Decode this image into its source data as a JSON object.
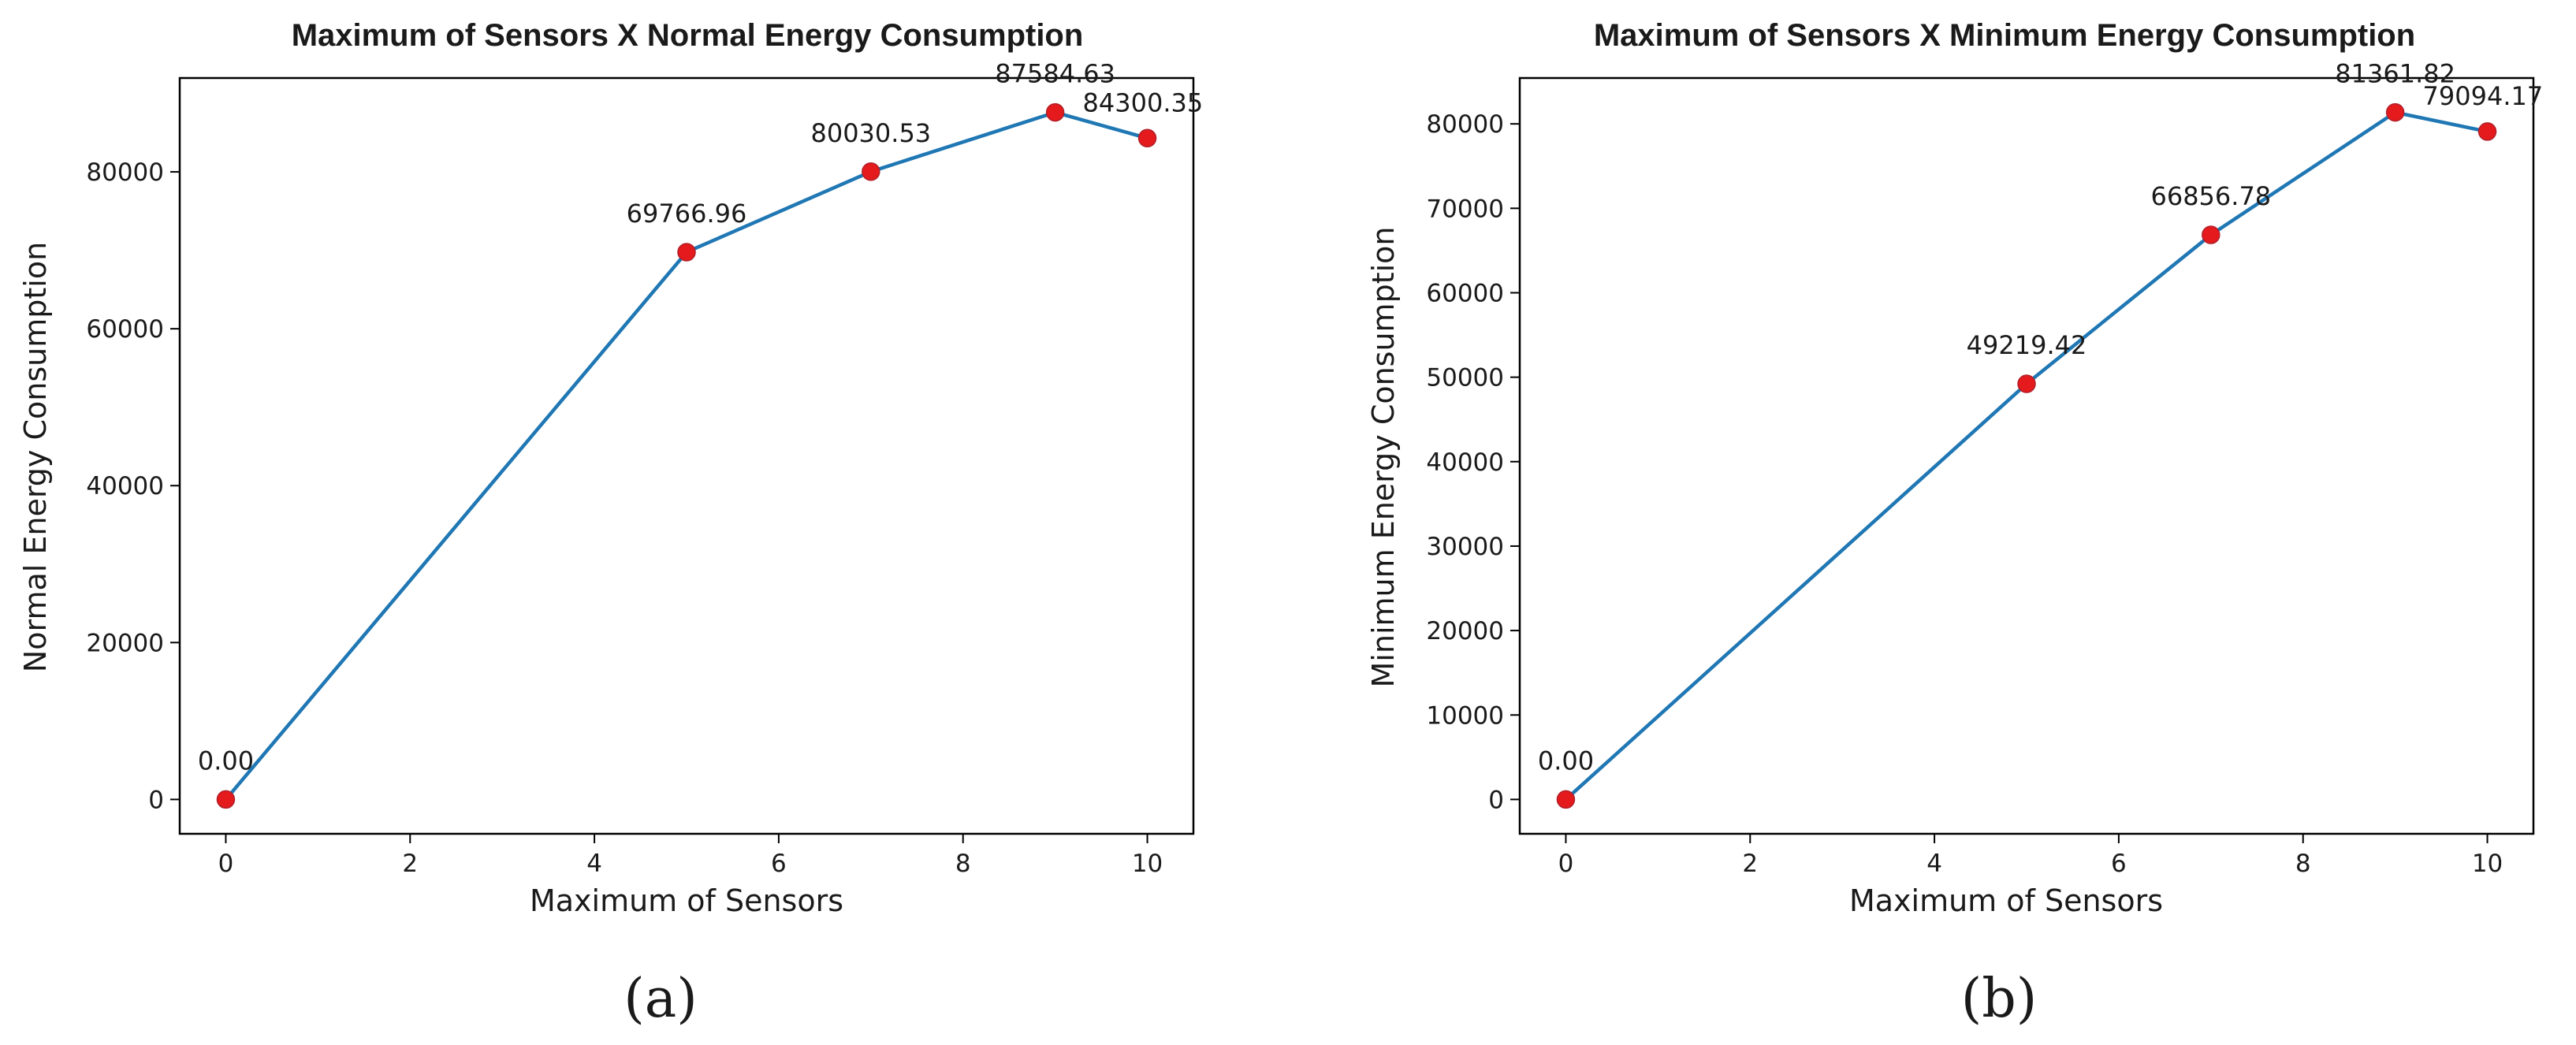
{
  "chart_data": [
    {
      "type": "line",
      "panel_label": "(a)",
      "title": "Maximum of Sensors X Normal Energy Consumption",
      "xlabel": "Maximum of Sensors",
      "ylabel": "Normal Energy Consumption",
      "x": [
        0,
        5,
        7,
        9,
        10
      ],
      "y": [
        0.0,
        69766.96,
        80030.53,
        87584.63,
        84300.35
      ],
      "point_labels": [
        "0.00",
        "69766.96",
        "80030.53",
        "87584.63",
        "84300.35"
      ],
      "xlim": [
        -0.5,
        10.5
      ],
      "ylim": [
        -4379.23,
        91963.86
      ],
      "xticks": [
        0,
        2,
        4,
        6,
        8,
        10
      ],
      "xtick_labels": [
        "0",
        "2",
        "4",
        "6",
        "8",
        "10"
      ],
      "yticks": [
        0,
        20000,
        40000,
        60000,
        80000
      ],
      "ytick_labels": [
        "0",
        "20000",
        "40000",
        "60000",
        "80000"
      ],
      "line_color": "#1f77b4",
      "marker_color": "#e41a1c",
      "grid": false
    },
    {
      "type": "line",
      "panel_label": "(b)",
      "title": "Maximum of Sensors X Minimum Energy Consumption",
      "xlabel": "Maximum of Sensors",
      "ylabel": "Minimum Energy Consumption",
      "x": [
        0,
        5,
        7,
        9,
        10
      ],
      "y": [
        0.0,
        49219.42,
        66856.78,
        81361.82,
        79094.17
      ],
      "point_labels": [
        "0.00",
        "49219.42",
        "66856.78",
        "81361.82",
        "79094.17"
      ],
      "xlim": [
        -0.5,
        10.5
      ],
      "ylim": [
        -4068.09,
        85429.91
      ],
      "xticks": [
        0,
        2,
        4,
        6,
        8,
        10
      ],
      "xtick_labels": [
        "0",
        "2",
        "4",
        "6",
        "8",
        "10"
      ],
      "yticks": [
        0,
        10000,
        20000,
        30000,
        40000,
        50000,
        60000,
        70000,
        80000
      ],
      "ytick_labels": [
        "0",
        "10000",
        "20000",
        "30000",
        "40000",
        "50000",
        "60000",
        "70000",
        "80000"
      ],
      "line_color": "#1f77b4",
      "marker_color": "#e41a1c",
      "grid": false
    }
  ]
}
